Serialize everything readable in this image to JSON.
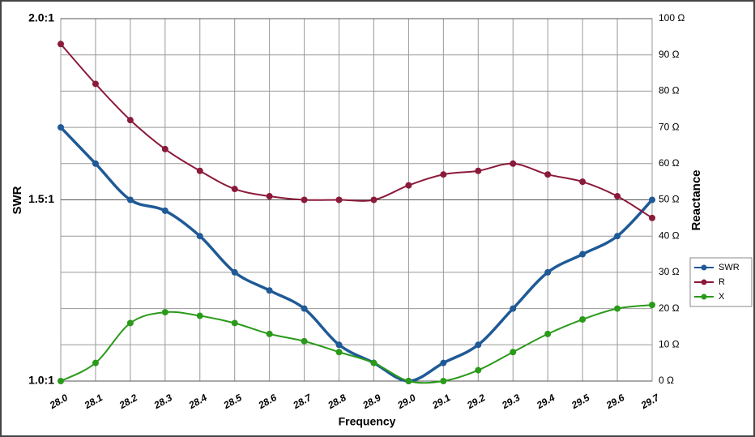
{
  "chart_data": {
    "type": "line",
    "x": [
      28.0,
      28.1,
      28.2,
      28.3,
      28.4,
      28.5,
      28.6,
      28.7,
      28.8,
      28.9,
      29.0,
      29.1,
      29.2,
      29.3,
      29.4,
      29.5,
      29.6,
      29.7
    ],
    "xlabel": "Frequency",
    "ylabel": "SWR",
    "y2label": "Reactance",
    "xlim": [
      28.0,
      29.7
    ],
    "xticks": [
      {
        "value": 28.0,
        "label": "28.0"
      },
      {
        "value": 28.1,
        "label": "28.1"
      },
      {
        "value": 28.2,
        "label": "28.2"
      },
      {
        "value": 28.3,
        "label": "28.3"
      },
      {
        "value": 28.4,
        "label": "28.4"
      },
      {
        "value": 28.5,
        "label": "28.5"
      },
      {
        "value": 28.6,
        "label": "28.6"
      },
      {
        "value": 28.7,
        "label": "28.7"
      },
      {
        "value": 28.8,
        "label": "28.8"
      },
      {
        "value": 28.9,
        "label": "28.9"
      },
      {
        "value": 29.0,
        "label": "29.0"
      },
      {
        "value": 29.1,
        "label": "29.1"
      },
      {
        "value": 29.2,
        "label": "29.2"
      },
      {
        "value": 29.3,
        "label": "29.3"
      },
      {
        "value": 29.4,
        "label": "29.4"
      },
      {
        "value": 29.5,
        "label": "29.5"
      },
      {
        "value": 29.6,
        "label": "29.6"
      },
      {
        "value": 29.7,
        "label": "29.7"
      }
    ],
    "ylim": [
      1.0,
      2.0
    ],
    "yticks": [
      {
        "value": 1.0,
        "label": "1.0:1"
      },
      {
        "value": 1.5,
        "label": "1.5:1"
      },
      {
        "value": 2.0,
        "label": "2.0:1"
      }
    ],
    "y2lim": [
      0,
      100
    ],
    "y2ticks": [
      {
        "value": 0,
        "label": "0 Ω"
      },
      {
        "value": 10,
        "label": "10 Ω"
      },
      {
        "value": 20,
        "label": "20 Ω"
      },
      {
        "value": 30,
        "label": "30 Ω"
      },
      {
        "value": 40,
        "label": "40 Ω"
      },
      {
        "value": 50,
        "label": "50 Ω"
      },
      {
        "value": 60,
        "label": "60 Ω"
      },
      {
        "value": 70,
        "label": "70 Ω"
      },
      {
        "value": 80,
        "label": "80 Ω"
      },
      {
        "value": 90,
        "label": "90 Ω"
      },
      {
        "value": 100,
        "label": "100 Ω"
      }
    ],
    "grid": true,
    "legend": "right",
    "series": [
      {
        "name": "SWR",
        "color": "#1f5a96",
        "values": [
          1.7,
          1.6,
          1.5,
          1.47,
          1.4,
          1.3,
          1.25,
          1.2,
          1.1,
          1.05,
          1.0,
          1.05,
          1.1,
          1.2,
          1.3,
          1.35,
          1.4,
          1.5
        ]
      },
      {
        "name": "R",
        "color": "#8b1a3a",
        "axis": "y2",
        "values": [
          93,
          82,
          72,
          64,
          58,
          53,
          51,
          50,
          50,
          50,
          54,
          57,
          58,
          60,
          57,
          55,
          51,
          45
        ]
      },
      {
        "name": "X",
        "color": "#2a9a1a",
        "axis": "y2",
        "values": [
          0,
          5,
          16,
          19,
          18,
          16,
          13,
          11,
          8,
          5,
          0,
          0,
          3,
          8,
          13,
          17,
          20,
          21
        ]
      }
    ]
  }
}
